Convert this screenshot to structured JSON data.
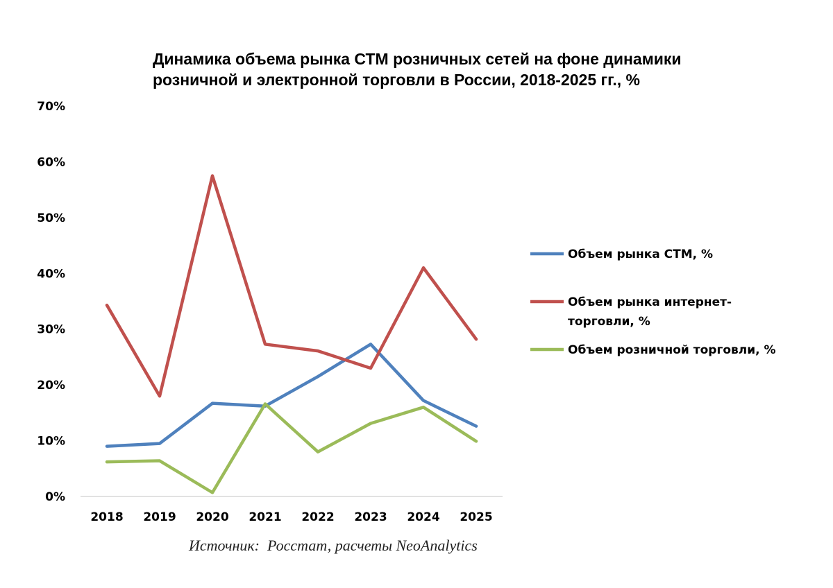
{
  "chart_data": {
    "type": "line",
    "title_lines": [
      "Динамика объема рынка СТМ розничных сетей на фоне динамики",
      "розничной и электронной торговли в России, 2018-2025 гг., %"
    ],
    "categories": [
      "2018",
      "2019",
      "2020",
      "2021",
      "2022",
      "2023",
      "2024",
      "2025"
    ],
    "y_ticks": [
      "0%",
      "10%",
      "20%",
      "30%",
      "40%",
      "50%",
      "60%",
      "70%"
    ],
    "ylim": [
      0,
      70
    ],
    "grid": false,
    "legend_position": "right",
    "series": [
      {
        "name": "Объем рынка СТМ, %",
        "legend_lines": [
          "Объем рынка СТМ, %"
        ],
        "color": "#4F81BD",
        "values": [
          9.0,
          9.5,
          16.7,
          16.2,
          21.5,
          27.3,
          17.2,
          12.6
        ]
      },
      {
        "name": "Объем рынка интернет-торговли, %",
        "legend_lines": [
          "Объем рынка интернет-",
          "торговли, %"
        ],
        "color": "#C0504D",
        "values": [
          34.3,
          18.0,
          57.5,
          27.3,
          26.1,
          23.0,
          41.0,
          28.2
        ]
      },
      {
        "name": "Объем розничной торговли, %",
        "legend_lines": [
          "Объем розничной торговли, %"
        ],
        "color": "#9BBB59",
        "values": [
          6.2,
          6.4,
          0.7,
          16.6,
          8.0,
          13.1,
          16.0,
          9.9
        ]
      }
    ]
  },
  "source_note": "Источник:  Росстат, расчеты NeoAnalytics"
}
